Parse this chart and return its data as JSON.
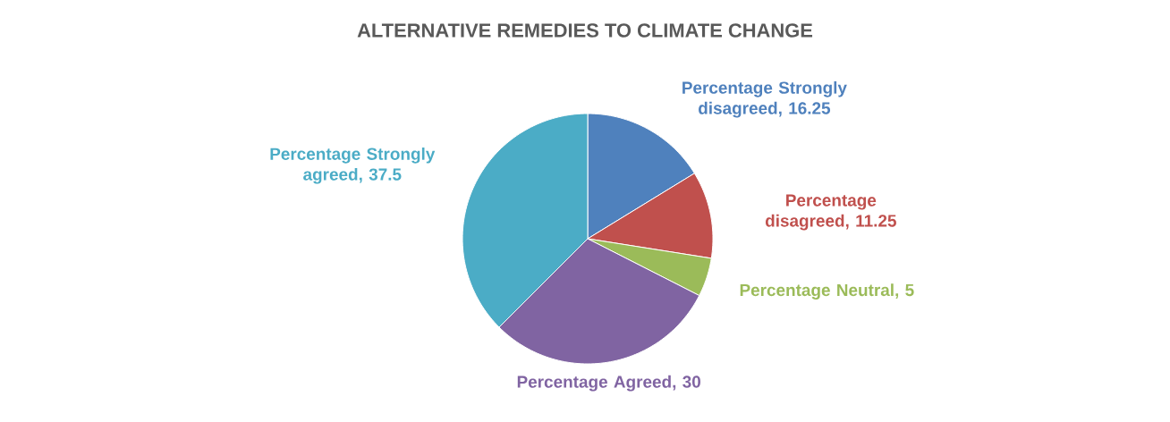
{
  "chart_data": {
    "type": "pie",
    "title": "ALTERNATIVE REMEDIES TO CLIMATE CHANGE",
    "categories": [
      "Percentage Strongly disagreed",
      "Percentage disagreed",
      "Percentage Neutral",
      "Percentage Agreed",
      "Percentage Strongly agreed"
    ],
    "values": [
      16.25,
      11.25,
      5,
      30,
      37.5
    ],
    "colors": [
      "#4f81bd",
      "#c0504d",
      "#9bbb59",
      "#8064a2",
      "#4bacc6"
    ],
    "value_labels": [
      ", 16.25",
      ", 11.25",
      ", 5",
      ", 30",
      ", 37.5"
    ]
  }
}
